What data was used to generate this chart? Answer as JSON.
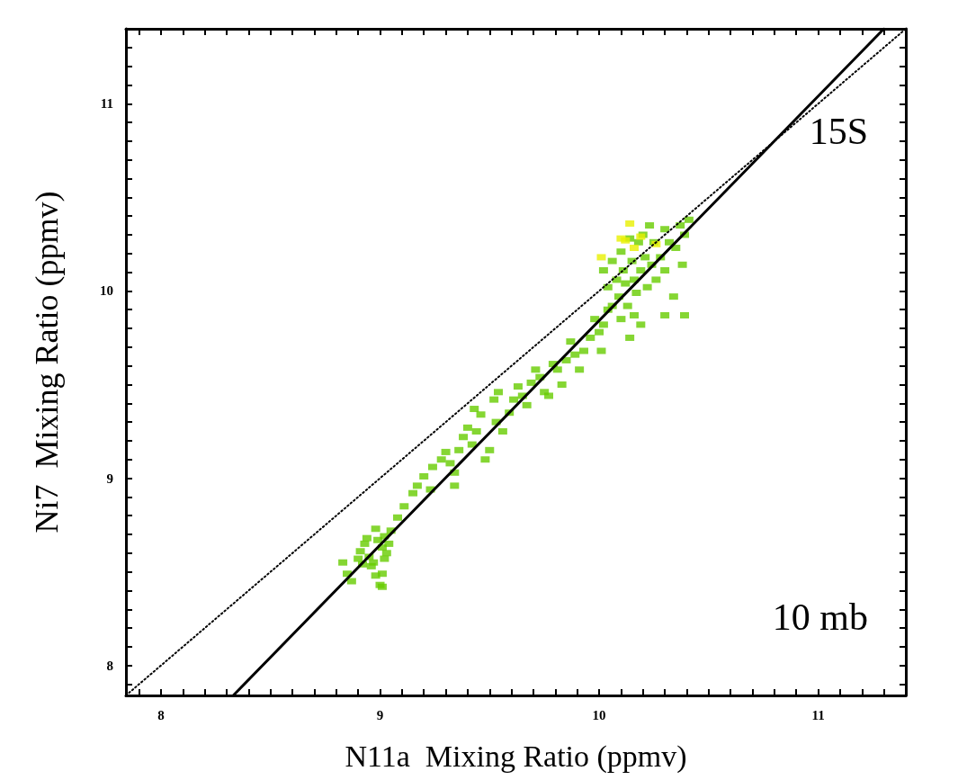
{
  "chart_data": {
    "type": "scatter",
    "xlabel": "N11a  Mixing Ratio (ppmv)",
    "ylabel": "Ni7  Mixing Ratio (ppmv)",
    "annotations": [
      "15S",
      "10 mb"
    ],
    "marker": "square",
    "grid": false,
    "xlim": [
      7.84,
      11.4
    ],
    "ylim": [
      7.84,
      11.4
    ],
    "xticks": [
      {
        "value": 7.9,
        "label": null
      },
      8,
      {
        "value": 8.1,
        "label": null
      },
      {
        "value": 8.2,
        "label": null
      },
      {
        "value": 8.3,
        "label": null
      },
      {
        "value": 8.4,
        "label": null
      },
      {
        "value": 8.5,
        "label": null
      },
      {
        "value": 8.6,
        "label": null
      },
      {
        "value": 8.7,
        "label": null
      },
      {
        "value": 8.8,
        "label": null
      },
      {
        "value": 8.9,
        "label": null
      },
      9,
      {
        "value": 9.1,
        "label": null
      },
      {
        "value": 9.2,
        "label": null
      },
      {
        "value": 9.3,
        "label": null
      },
      {
        "value": 9.4,
        "label": null
      },
      {
        "value": 9.5,
        "label": null
      },
      {
        "value": 9.6,
        "label": null
      },
      {
        "value": 9.7,
        "label": null
      },
      {
        "value": 9.8,
        "label": null
      },
      {
        "value": 9.9,
        "label": null
      },
      10,
      {
        "value": 10.1,
        "label": null
      },
      {
        "value": 10.2,
        "label": null
      },
      {
        "value": 10.3,
        "label": null
      },
      {
        "value": 10.4,
        "label": null
      },
      {
        "value": 10.5,
        "label": null
      },
      {
        "value": 10.6,
        "label": null
      },
      {
        "value": 10.7,
        "label": null
      },
      {
        "value": 10.8,
        "label": null
      },
      {
        "value": 10.9,
        "label": null
      },
      11,
      {
        "value": 11.1,
        "label": null
      },
      {
        "value": 11.2,
        "label": null
      },
      {
        "value": 11.3,
        "label": null
      }
    ],
    "yticks": [
      {
        "value": 7.9,
        "label": null
      },
      8,
      {
        "value": 8.1,
        "label": null
      },
      {
        "value": 8.2,
        "label": null
      },
      {
        "value": 8.3,
        "label": null
      },
      {
        "value": 8.4,
        "label": null
      },
      {
        "value": 8.5,
        "label": null
      },
      {
        "value": 8.6,
        "label": null
      },
      {
        "value": 8.7,
        "label": null
      },
      {
        "value": 8.8,
        "label": null
      },
      {
        "value": 8.9,
        "label": null
      },
      9,
      {
        "value": 9.1,
        "label": null
      },
      {
        "value": 9.2,
        "label": null
      },
      {
        "value": 9.3,
        "label": null
      },
      {
        "value": 9.4,
        "label": null
      },
      {
        "value": 9.5,
        "label": null
      },
      {
        "value": 9.6,
        "label": null
      },
      {
        "value": 9.7,
        "label": null
      },
      {
        "value": 9.8,
        "label": null
      },
      {
        "value": 9.9,
        "label": null
      },
      10,
      {
        "value": 10.1,
        "label": null
      },
      {
        "value": 10.2,
        "label": null
      },
      {
        "value": 10.3,
        "label": null
      },
      {
        "value": 10.4,
        "label": null
      },
      {
        "value": 10.5,
        "label": null
      },
      {
        "value": 10.6,
        "label": null
      },
      {
        "value": 10.7,
        "label": null
      },
      {
        "value": 10.8,
        "label": null
      },
      {
        "value": 10.9,
        "label": null
      },
      11,
      {
        "value": 11.1,
        "label": null
      },
      {
        "value": 11.2,
        "label": null
      },
      {
        "value": 11.3,
        "label": null
      }
    ],
    "series": [
      {
        "color": "#66cc00",
        "x": [
          8.83,
          8.85,
          8.87,
          8.91,
          8.93,
          8.95,
          8.97,
          8.99,
          9.01,
          9.03,
          8.96,
          8.98,
          9.0,
          9.02,
          9.04,
          8.92,
          8.94,
          8.98,
          9.01,
          9.01,
          9.05,
          8.9,
          9.02,
          9.08,
          9.11,
          9.15,
          9.17,
          9.2,
          9.24,
          9.23,
          9.28,
          9.3,
          9.32,
          9.34,
          9.36,
          9.38,
          9.4,
          9.34,
          9.42,
          9.44,
          9.46,
          9.48,
          9.5,
          9.43,
          9.52,
          9.53,
          9.56,
          9.54,
          9.59,
          9.61,
          9.63,
          9.65,
          9.67,
          9.69,
          9.71,
          9.73,
          9.75,
          9.77,
          9.79,
          9.81,
          9.83,
          9.85,
          9.87,
          9.89,
          9.91,
          9.93,
          9.96,
          9.98,
          10.0,
          10.01,
          10.02,
          10.04,
          10.06,
          10.02,
          10.04,
          10.06,
          10.08,
          10.09,
          10.1,
          10.11,
          10.12,
          10.13,
          10.14,
          10.15,
          10.16,
          10.17,
          10.18,
          10.19,
          10.2,
          10.21,
          10.22,
          10.23,
          10.24,
          10.25,
          10.26,
          10.28,
          10.3,
          10.3,
          10.32,
          10.34,
          10.35,
          10.37,
          10.38,
          10.39,
          10.41,
          10.39,
          10.16,
          10.19,
          10.1,
          10.14,
          10.3
        ],
        "values": [
          8.55,
          8.49,
          8.45,
          8.61,
          8.65,
          8.58,
          8.55,
          8.67,
          8.63,
          8.6,
          8.53,
          8.48,
          8.43,
          8.69,
          8.65,
          8.54,
          8.68,
          8.73,
          8.42,
          8.49,
          8.72,
          8.57,
          8.57,
          8.79,
          8.85,
          8.92,
          8.96,
          9.01,
          9.06,
          8.94,
          9.1,
          9.14,
          9.08,
          9.03,
          9.15,
          9.22,
          9.27,
          8.96,
          9.18,
          9.25,
          9.34,
          9.1,
          9.15,
          9.37,
          9.42,
          9.3,
          9.25,
          9.46,
          9.35,
          9.42,
          9.49,
          9.44,
          9.39,
          9.51,
          9.58,
          9.54,
          9.46,
          9.44,
          9.61,
          9.58,
          9.5,
          9.63,
          9.73,
          9.66,
          9.58,
          9.68,
          9.75,
          9.85,
          9.78,
          9.68,
          9.82,
          9.9,
          9.92,
          10.11,
          10.02,
          10.16,
          10.06,
          9.97,
          10.21,
          10.11,
          10.04,
          9.92,
          10.28,
          10.16,
          10.06,
          9.99,
          10.26,
          10.11,
          10.3,
          10.18,
          10.02,
          10.35,
          10.14,
          10.26,
          10.06,
          10.18,
          10.33,
          10.11,
          10.26,
          9.97,
          10.23,
          10.35,
          10.14,
          10.3,
          10.38,
          9.87,
          9.87,
          9.82,
          9.85,
          9.75,
          9.87
        ]
      },
      {
        "color": "#e8f000",
        "x": [
          10.1,
          10.12,
          10.14,
          10.16,
          10.19,
          10.26,
          10.01
        ],
        "values": [
          10.28,
          10.27,
          10.36,
          10.23,
          10.29,
          10.25,
          10.18
        ]
      },
      {
        "type": "line",
        "color": "#000000",
        "line_style": "solid",
        "marker": "none",
        "x": [
          8.33,
          11.3
        ],
        "values": [
          7.84,
          11.4
        ]
      },
      {
        "type": "line",
        "color": "#000000",
        "line_style": "dotted",
        "marker": "none",
        "x": [
          7.84,
          11.4
        ],
        "values": [
          7.84,
          11.4
        ]
      }
    ]
  }
}
